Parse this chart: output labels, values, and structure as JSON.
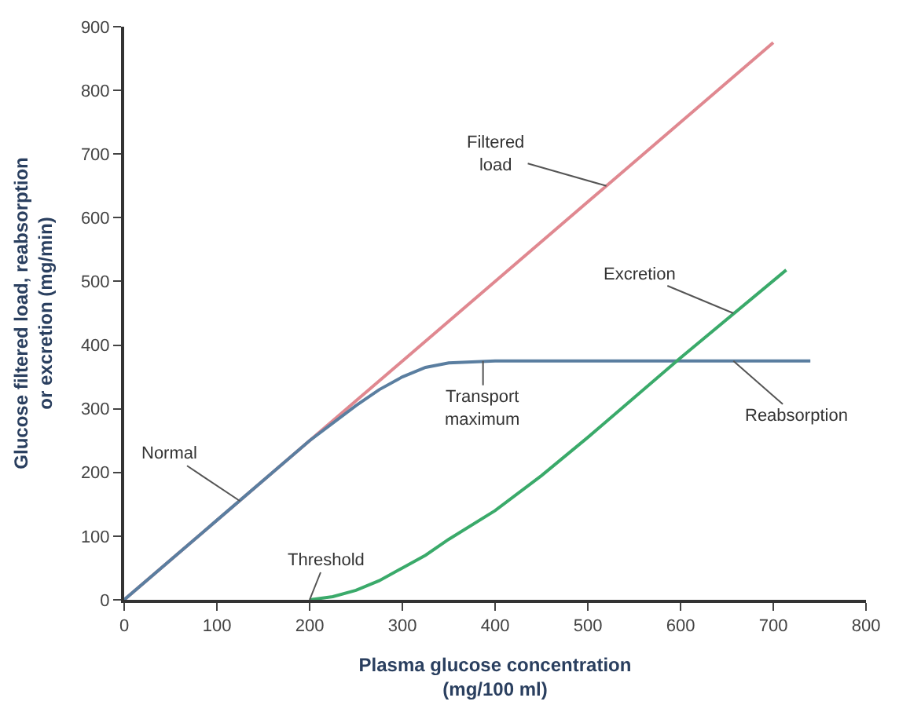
{
  "chart_data": {
    "type": "line",
    "xlabel": "Plasma glucose concentration\n(mg/100 ml)",
    "ylabel": "Glucose filtered load, reabsorption\nor excretion (mg/min)",
    "series": [
      {
        "color": "#e08890",
        "x": [
          0,
          700
        ],
        "values": [
          0,
          875
        ]
      },
      {
        "color": "#5a7ea0",
        "x": [
          0,
          100,
          200,
          250,
          275,
          300,
          325,
          350,
          400,
          740
        ],
        "values": [
          0,
          125,
          250,
          305,
          330,
          350,
          365,
          372,
          375,
          375
        ]
      },
      {
        "color": "#3aaa6a",
        "x": [
          200,
          225,
          250,
          275,
          300,
          325,
          350,
          400,
          450,
          500,
          600,
          714
        ],
        "values": [
          0,
          5,
          15,
          30,
          50,
          70,
          95,
          140,
          195,
          255,
          380,
          518
        ]
      }
    ],
    "annotations": [
      {
        "text": "Filtered\nload",
        "x": 520,
        "y": 650
      },
      {
        "text": "Excretion",
        "x": 657,
        "y": 450
      },
      {
        "text": "Transport\nmaximum",
        "x": 387,
        "y": 375
      },
      {
        "text": "Reabsorption",
        "x": 657,
        "y": 375
      },
      {
        "text": "Normal",
        "x": 125,
        "y": 155
      },
      {
        "text": "Threshold",
        "x": 200,
        "y": 0
      }
    ],
    "xlim": [
      0,
      800
    ],
    "xticks": [
      0,
      100,
      200,
      300,
      400,
      500,
      600,
      700,
      800
    ],
    "ylim": [
      0,
      900
    ],
    "yticks": [
      0,
      100,
      200,
      300,
      400,
      500,
      600,
      700,
      800,
      900
    ],
    "marker": "none",
    "line_style": "solid"
  }
}
